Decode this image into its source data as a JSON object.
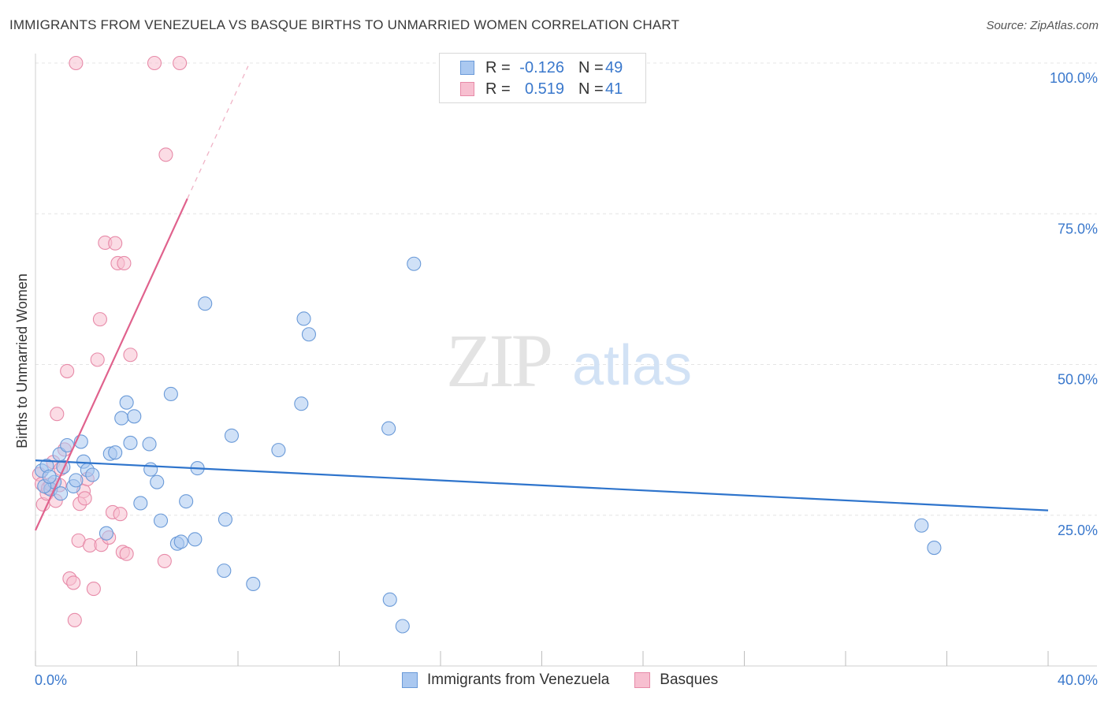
{
  "header": {
    "title": "IMMIGRANTS FROM VENEZUELA VS BASQUE BIRTHS TO UNMARRIED WOMEN CORRELATION CHART",
    "source": "Source: ZipAtlas.com"
  },
  "watermark": {
    "zip": "ZIP",
    "atlas": "atlas"
  },
  "legend_top": {
    "rows": [
      {
        "r_label": "R =",
        "r_value": "-0.126",
        "n_label": "N =",
        "n_value": "49",
        "color": "#aac8f0",
        "stroke": "#6a9ad8"
      },
      {
        "r_label": "R =",
        "r_value": "0.519",
        "n_label": "N =",
        "n_value": "41",
        "color": "#f7bfd0",
        "stroke": "#e78aa8"
      }
    ]
  },
  "legend_bottom": {
    "items": [
      {
        "label": "Immigrants from Venezuela",
        "color": "#aac8f0",
        "stroke": "#6a9ad8"
      },
      {
        "label": "Basques",
        "color": "#f7bfd0",
        "stroke": "#e78aa8"
      }
    ]
  },
  "chart_data": {
    "type": "scatter",
    "title": "IMMIGRANTS FROM VENEZUELA VS BASQUE BIRTHS TO UNMARRIED WOMEN CORRELATION CHART",
    "xlabel": "",
    "ylabel": "Births to Unmarried Women",
    "xlim": [
      0,
      40
    ],
    "ylim": [
      0,
      100
    ],
    "x_tick_labels": [
      {
        "value": 0,
        "label": "0.0%"
      },
      {
        "value": 40,
        "label": "40.0%"
      }
    ],
    "y_tick_labels": [
      {
        "value": 25,
        "label": "25.0%"
      },
      {
        "value": 50,
        "label": "50.0%"
      },
      {
        "value": 75,
        "label": "75.0%"
      },
      {
        "value": 100,
        "label": "100.0%"
      }
    ],
    "series": [
      {
        "name": "Immigrants from Venezuela",
        "color": "#aac8f0",
        "stroke": "#6a9ad8",
        "line_color": "#2e74cc",
        "trend": {
          "x0": 0,
          "y0": 34.1,
          "x1": 40,
          "y1": 25.8
        },
        "points": [
          [
            0.25,
            32.4
          ],
          [
            0.45,
            33.2
          ],
          [
            0.6,
            29.3
          ],
          [
            0.75,
            30.5
          ],
          [
            0.95,
            35.1
          ],
          [
            1.1,
            33.0
          ],
          [
            1.25,
            36.6
          ],
          [
            1.5,
            29.8
          ],
          [
            1.6,
            30.8
          ],
          [
            1.8,
            37.2
          ],
          [
            1.9,
            33.9
          ],
          [
            2.05,
            32.5
          ],
          [
            2.25,
            31.7
          ],
          [
            2.95,
            35.2
          ],
          [
            3.15,
            35.4
          ],
          [
            3.4,
            41.1
          ],
          [
            3.6,
            43.7
          ],
          [
            3.75,
            37.0
          ],
          [
            3.9,
            41.4
          ],
          [
            4.5,
            36.8
          ],
          [
            4.55,
            32.6
          ],
          [
            4.8,
            30.5
          ],
          [
            4.15,
            27.0
          ],
          [
            5.35,
            45.1
          ],
          [
            4.95,
            24.1
          ],
          [
            5.6,
            20.3
          ],
          [
            5.75,
            20.6
          ],
          [
            5.95,
            27.3
          ],
          [
            6.3,
            21.0
          ],
          [
            6.4,
            32.8
          ],
          [
            6.7,
            60.1
          ],
          [
            7.5,
            24.3
          ],
          [
            7.45,
            15.8
          ],
          [
            7.75,
            38.2
          ],
          [
            8.6,
            13.6
          ],
          [
            9.6,
            35.8
          ],
          [
            10.5,
            43.5
          ],
          [
            10.6,
            57.6
          ],
          [
            10.8,
            55.0
          ],
          [
            13.95,
            39.4
          ],
          [
            14.5,
            6.6
          ],
          [
            14.0,
            11.0
          ],
          [
            14.95,
            66.7
          ],
          [
            1.0,
            28.6
          ],
          [
            2.8,
            22.0
          ],
          [
            35.0,
            23.3
          ],
          [
            35.5,
            19.6
          ],
          [
            0.35,
            29.8
          ],
          [
            0.55,
            31.4
          ]
        ]
      },
      {
        "name": "Basques",
        "color": "#f7bfd0",
        "stroke": "#e78aa8",
        "line_color": "#e0628d",
        "trend": {
          "x0": 0,
          "y0": 22.5,
          "x1": 6.0,
          "y1": 77.5
        },
        "trend_dashed": {
          "x0": 6.0,
          "y0": 77.5,
          "x1": 8.4,
          "y1": 99.5
        },
        "points": [
          [
            0.15,
            31.8
          ],
          [
            0.25,
            30.2
          ],
          [
            0.3,
            26.8
          ],
          [
            0.45,
            28.6
          ],
          [
            0.5,
            29.5
          ],
          [
            0.6,
            30.1
          ],
          [
            0.7,
            33.8
          ],
          [
            0.8,
            27.4
          ],
          [
            0.85,
            41.8
          ],
          [
            0.95,
            30.0
          ],
          [
            1.0,
            32.7
          ],
          [
            1.15,
            35.9
          ],
          [
            1.25,
            48.9
          ],
          [
            1.35,
            14.5
          ],
          [
            1.5,
            13.8
          ],
          [
            1.55,
            7.6
          ],
          [
            1.7,
            20.8
          ],
          [
            1.75,
            26.9
          ],
          [
            1.9,
            29.0
          ],
          [
            1.95,
            27.8
          ],
          [
            2.05,
            31.0
          ],
          [
            2.15,
            20.0
          ],
          [
            2.3,
            12.8
          ],
          [
            2.45,
            50.8
          ],
          [
            2.55,
            57.5
          ],
          [
            2.6,
            20.1
          ],
          [
            2.75,
            70.2
          ],
          [
            2.9,
            21.3
          ],
          [
            3.05,
            25.5
          ],
          [
            3.15,
            70.1
          ],
          [
            3.25,
            66.8
          ],
          [
            3.35,
            25.2
          ],
          [
            3.45,
            18.9
          ],
          [
            3.6,
            18.6
          ],
          [
            3.75,
            51.6
          ],
          [
            3.5,
            66.8
          ],
          [
            5.1,
            17.4
          ],
          [
            5.15,
            84.8
          ],
          [
            1.6,
            100.0
          ],
          [
            4.7,
            100.0
          ],
          [
            5.7,
            100.0
          ]
        ]
      }
    ]
  }
}
